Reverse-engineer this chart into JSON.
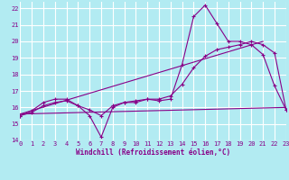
{
  "xlabel": "Windchill (Refroidissement éolien,°C)",
  "bg_color": "#b2ebf2",
  "grid_color": "#ffffff",
  "line_color": "#880088",
  "xlim": [
    0,
    23
  ],
  "ylim": [
    14,
    22.4
  ],
  "ytick_vals": [
    14,
    15,
    16,
    17,
    18,
    19,
    20,
    21,
    22
  ],
  "xtick_vals": [
    0,
    1,
    2,
    3,
    4,
    5,
    6,
    7,
    8,
    9,
    10,
    11,
    12,
    13,
    14,
    15,
    16,
    17,
    18,
    19,
    20,
    21,
    22,
    23
  ],
  "series_jagged": {
    "x": [
      0,
      1,
      2,
      3,
      4,
      5,
      6,
      7,
      8,
      9,
      10,
      11,
      12,
      13,
      14,
      15,
      16,
      17,
      18,
      19,
      20,
      21,
      22,
      23
    ],
    "y": [
      15.5,
      15.8,
      16.3,
      16.5,
      16.5,
      16.1,
      15.5,
      14.2,
      16.0,
      16.3,
      16.3,
      16.5,
      16.4,
      16.5,
      18.6,
      21.5,
      22.2,
      21.1,
      20.0,
      20.0,
      19.8,
      19.2,
      17.3,
      15.85
    ]
  },
  "series_smooth": {
    "x": [
      0,
      1,
      2,
      3,
      4,
      5,
      6,
      7,
      8,
      9,
      10,
      11,
      12,
      13,
      14,
      15,
      16,
      17,
      18,
      19,
      20,
      21,
      22,
      23
    ],
    "y": [
      15.5,
      15.7,
      16.1,
      16.3,
      16.4,
      16.1,
      15.85,
      15.5,
      16.1,
      16.3,
      16.4,
      16.5,
      16.5,
      16.7,
      17.4,
      18.4,
      19.1,
      19.5,
      19.65,
      19.8,
      20.0,
      19.8,
      19.3,
      15.85
    ]
  },
  "series_linear_upper": {
    "x": [
      0,
      21
    ],
    "y": [
      15.6,
      20.0
    ]
  },
  "series_linear_lower": {
    "x": [
      0,
      23
    ],
    "y": [
      15.6,
      16.0
    ]
  }
}
